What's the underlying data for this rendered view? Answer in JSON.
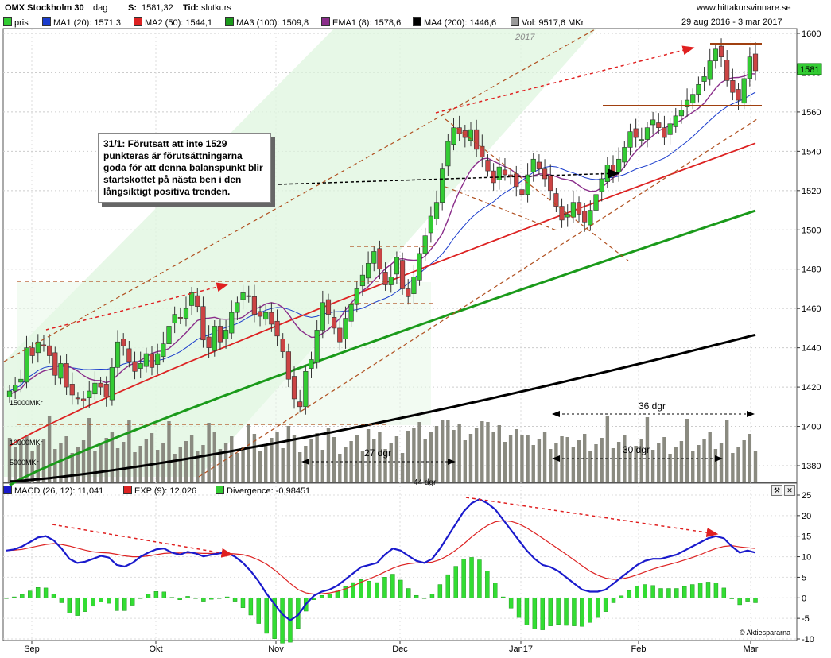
{
  "header": {
    "name": "OMX Stockholm 30",
    "period": "dag",
    "s_label": "S:",
    "s_value": "1581,32",
    "tid_label": "Tid:",
    "tid_value": "slutkurs",
    "site": "www.hittakursvinnare.se",
    "date_range": "29 aug 2016 - 3 mar 2017"
  },
  "legend": [
    {
      "label": "pris",
      "color": "#33cc33"
    },
    {
      "label": "MA1 (20): 1571,3",
      "color": "#1a3ccc"
    },
    {
      "label": "MA2 (50): 1544,1",
      "color": "#dd2222"
    },
    {
      "label": "MA3 (100): 1509,8",
      "color": "#1a9a1a"
    },
    {
      "label": "EMA1 (8): 1578,6",
      "color": "#8a2d8a"
    },
    {
      "label": "MA4 (200): 1446,6",
      "color": "#000000"
    },
    {
      "label": "Vol: 9517,6 MKr",
      "color": "#999999"
    }
  ],
  "macd_legend": [
    {
      "label": "MACD (26, 12): 11,041",
      "color": "#1a1acc"
    },
    {
      "label": "EXP (9): 12,026",
      "color": "#dd2222"
    },
    {
      "label": "Divergence: -0,98451",
      "color": "#33cc33"
    }
  ],
  "note": "31/1: Förutsatt att inte 1529 punkteras är förutsättningarna goda för att denna balanspunkt blir startskottet på nästa ben i den långsiktigt positiva trenden.",
  "annotations": {
    "year": "2017",
    "dgr_36": "36 dgr",
    "dgr_30": "30 dgr",
    "dgr_27": "27 dgr",
    "dgr_44": "44 dgr",
    "last_price": "1581",
    "credit": "© Aktiespararna"
  },
  "chart_data": [
    {
      "type": "candlestick",
      "title": "OMX Stockholm 30",
      "ylim": [
        1370,
        1605
      ],
      "y_ticks": [
        1380,
        1400,
        1420,
        1440,
        1460,
        1480,
        1500,
        1520,
        1540,
        1560,
        1580,
        1600
      ],
      "x_ticks": [
        "Sep",
        "Okt",
        "Nov",
        "Dec",
        "Jan17",
        "Feb",
        "Mar"
      ],
      "volume_labels": [
        "15000MKr",
        "10000MKr",
        "5000MKr"
      ],
      "close": [
        1418,
        1421,
        1424,
        1440,
        1436,
        1443,
        1441,
        1436,
        1426,
        1432,
        1420,
        1416,
        1414,
        1413,
        1418,
        1422,
        1420,
        1415,
        1430,
        1443,
        1441,
        1433,
        1428,
        1432,
        1437,
        1430,
        1437,
        1442,
        1451,
        1457,
        1455,
        1460,
        1468,
        1461,
        1444,
        1440,
        1451,
        1443,
        1449,
        1458,
        1463,
        1468,
        1466,
        1457,
        1456,
        1458,
        1452,
        1446,
        1438,
        1424,
        1414,
        1410,
        1428,
        1434,
        1449,
        1463,
        1457,
        1450,
        1443,
        1455,
        1462,
        1470,
        1477,
        1483,
        1489,
        1480,
        1472,
        1476,
        1486,
        1470,
        1466,
        1476,
        1488,
        1497,
        1507,
        1514,
        1531,
        1545,
        1552,
        1549,
        1547,
        1551,
        1541,
        1537,
        1530,
        1524,
        1532,
        1528,
        1527,
        1522,
        1518,
        1528,
        1536,
        1531,
        1526,
        1520,
        1512,
        1505,
        1508,
        1514,
        1508,
        1504,
        1510,
        1518,
        1526,
        1533,
        1528,
        1536,
        1542,
        1550,
        1547,
        1546,
        1552,
        1556,
        1552,
        1547,
        1554,
        1558,
        1561,
        1566,
        1569,
        1574,
        1578,
        1586,
        1592,
        1588,
        1576,
        1570,
        1566,
        1577,
        1588,
        1581
      ],
      "series": [
        {
          "name": "MA1 (20)",
          "last": 1571.3,
          "start": 1418,
          "end": 1571.3
        },
        {
          "name": "MA2 (50)",
          "last": 1544.1,
          "start": 1390,
          "end": 1544.1
        },
        {
          "name": "MA3 (100)",
          "last": 1509.8,
          "start": 1370,
          "end": 1509.8
        },
        {
          "name": "EMA1 (8)",
          "last": 1578.6,
          "start": 1412,
          "end": 1578.6
        },
        {
          "name": "MA4 (200)",
          "last": 1446.6,
          "start": 1372,
          "end": 1446.6
        }
      ]
    },
    {
      "type": "line",
      "title": "MACD (26, 12)",
      "ylim": [
        -10,
        25
      ],
      "y_ticks": [
        -10,
        -5,
        0,
        5,
        10,
        15,
        20,
        25
      ],
      "series": [
        {
          "name": "MACD (26, 12)",
          "last": 11.041,
          "values": [
            11.5,
            11.8,
            12.5,
            13.6,
            14.7,
            15.0,
            14.0,
            12.0,
            9.5,
            8.5,
            8.8,
            9.5,
            10.2,
            9.8,
            8.0,
            7.6,
            8.5,
            10.0,
            11.0,
            11.8,
            12.0,
            11.0,
            10.5,
            11.2,
            10.8,
            10.1,
            10.5,
            10.8,
            11.0,
            10.0,
            8.5,
            6.5,
            4.0,
            1.0,
            -1.5,
            -4.0,
            -5.5,
            -4.2,
            -1.5,
            0.5,
            1.5,
            2.0,
            3.0,
            4.5,
            6.0,
            7.5,
            8.0,
            8.5,
            10.5,
            12.0,
            11.5,
            10.2,
            9.0,
            8.5,
            9.5,
            12.0,
            15.0,
            18.0,
            21.0,
            23.0,
            24.0,
            23.0,
            21.5,
            19.0,
            16.5,
            14.0,
            11.5,
            9.5,
            8.0,
            7.5,
            6.5,
            5.0,
            3.5,
            2.0,
            1.5,
            1.5,
            2.0,
            3.5,
            5.0,
            6.5,
            8.0,
            9.0,
            9.5,
            9.5,
            10.0,
            10.5,
            11.5,
            12.5,
            13.5,
            14.5,
            15.0,
            14.5,
            12.5,
            11.0,
            11.5,
            11.0
          ]
        },
        {
          "name": "EXP (9)",
          "last": 12.026,
          "values": [
            11.5,
            11.6,
            11.8,
            12.2,
            12.6,
            13.0,
            13.2,
            13.0,
            12.6,
            12.1,
            11.6,
            11.2,
            11.0,
            10.9,
            10.6,
            10.2,
            10.0,
            10.0,
            10.2,
            10.5,
            10.8,
            10.9,
            10.9,
            10.9,
            10.9,
            10.8,
            10.8,
            10.8,
            10.8,
            10.7,
            10.5,
            10.0,
            9.2,
            8.2,
            6.8,
            5.2,
            3.5,
            2.0,
            1.2,
            0.9,
            1.0,
            1.2,
            1.6,
            2.2,
            2.9,
            3.8,
            4.6,
            5.4,
            6.3,
            7.2,
            7.9,
            8.3,
            8.5,
            8.5,
            8.7,
            9.3,
            10.3,
            11.6,
            13.1,
            14.8,
            16.3,
            17.6,
            18.5,
            18.8,
            18.6,
            18.0,
            17.0,
            15.8,
            14.5,
            13.2,
            11.9,
            10.6,
            9.2,
            7.8,
            6.5,
            5.5,
            4.8,
            4.5,
            4.6,
            5.0,
            5.6,
            6.3,
            7.0,
            7.6,
            8.1,
            8.6,
            9.2,
            9.8,
            10.5,
            11.3,
            12.0,
            12.5,
            12.7,
            12.4,
            12.2,
            12.0
          ]
        }
      ]
    }
  ]
}
